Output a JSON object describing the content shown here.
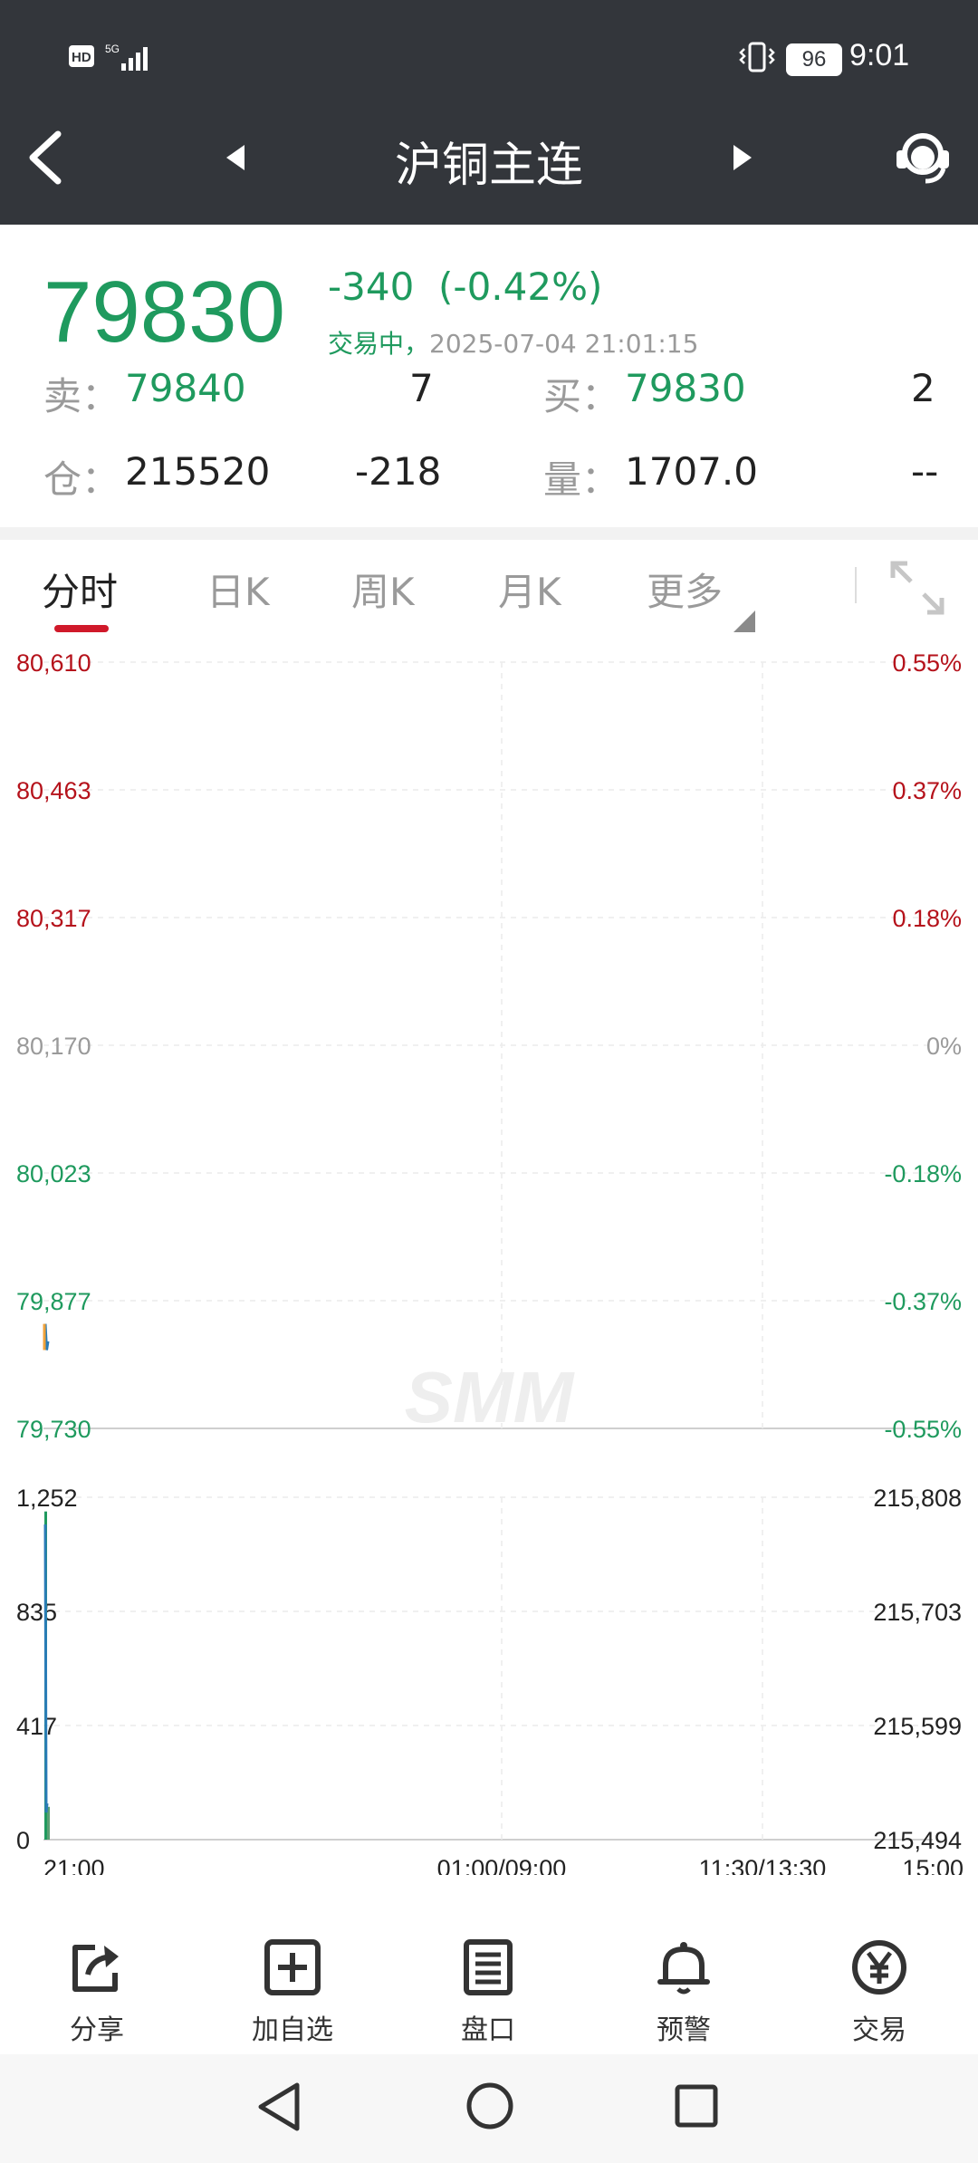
{
  "status_bar": {
    "left_icons": "HD 5G signal",
    "battery": "96",
    "time": "9:01"
  },
  "nav": {
    "title": "沪铜主连"
  },
  "quote": {
    "price": "79830",
    "change": "-340",
    "change_pct": "(-0.42%)",
    "status": "交易中，",
    "datetime": "2025-07-04 21:01:15",
    "sell_label": "卖：",
    "sell_price": "79840",
    "sell_vol": "7",
    "buy_label": "买：",
    "buy_price": "79830",
    "buy_vol": "2",
    "oi_label": "仓：",
    "oi_value": "215520",
    "oi_change": "-218",
    "vol_label": "量：",
    "vol_value": "1707.0",
    "vol_extra": "--"
  },
  "tabs": {
    "fenshi": "分时",
    "dayk": "日K",
    "weekk": "周K",
    "monthk": "月K",
    "more": "更多"
  },
  "colors": {
    "red": "#b5121b",
    "green": "#1f9a5e",
    "grey": "#9a9a9a",
    "blue": "#2a7cb7",
    "orange": "#f0a23a"
  },
  "chart_data": [
    {
      "type": "line",
      "y_labels_left": [
        "80,610",
        "80,463",
        "80,317",
        "80,170",
        "80,023",
        "79,877",
        "79,730"
      ],
      "y_labels_right": [
        "0.55%",
        "0.37%",
        "0.18%",
        "0%",
        "-0.18%",
        "-0.37%",
        "-0.55%"
      ],
      "ylim": [
        79730,
        80610
      ],
      "series": [
        {
          "values": [
            79850,
            79820,
            79830
          ]
        }
      ],
      "watermark": "SMM"
    },
    {
      "type": "bar",
      "y_labels_left": [
        "1,252",
        "835",
        "417",
        "0"
      ],
      "y_labels_right": [
        "215,808",
        "215,703",
        "215,599",
        "215,494"
      ],
      "ylim": [
        0,
        1252
      ],
      "values": [
        1200,
        120
      ],
      "x_labels": [
        "21:00",
        "01:00/09:00",
        "11:30/13:30",
        "15:00"
      ]
    }
  ],
  "toolbar": {
    "share": "分享",
    "add": "加自选",
    "pankou": "盘口",
    "alert": "预警",
    "trade": "交易"
  }
}
